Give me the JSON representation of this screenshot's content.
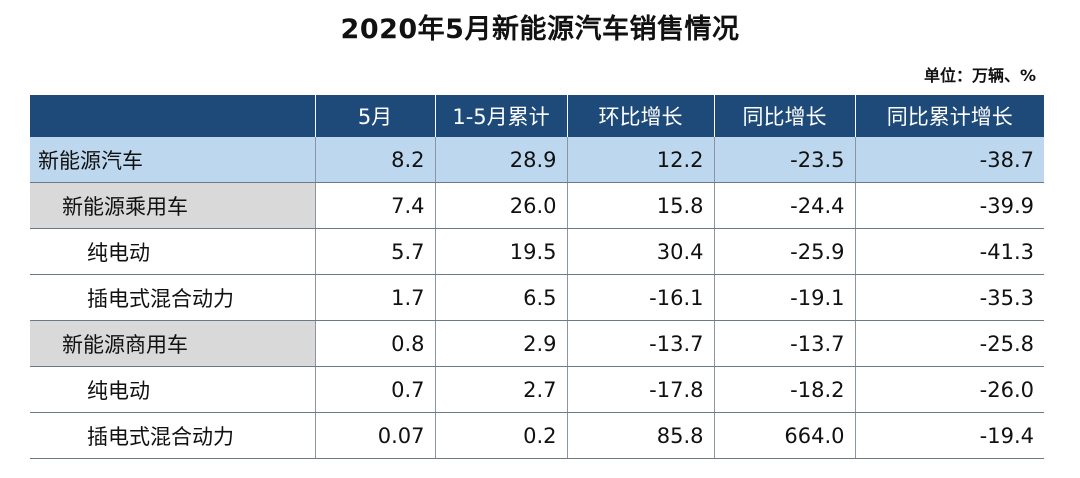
{
  "title": "2020年5月新能源汽车销售情况",
  "unit": "单位：万辆、%",
  "table": {
    "headers": [
      "",
      "5月",
      "1-5月累计",
      "环比增长",
      "同比增长",
      "同比累计增长"
    ],
    "rows": [
      {
        "name": "新能源汽车",
        "level": 0,
        "values": [
          "8.2",
          "28.9",
          "12.2",
          "-23.5",
          "-38.7"
        ]
      },
      {
        "name": "新能源乘用车",
        "level": 1,
        "values": [
          "7.4",
          "26.0",
          "15.8",
          "-24.4",
          "-39.9"
        ]
      },
      {
        "name": "纯电动",
        "level": 2,
        "values": [
          "5.7",
          "19.5",
          "30.4",
          "-25.9",
          "-41.3"
        ]
      },
      {
        "name": "插电式混合动力",
        "level": 2,
        "values": [
          "1.7",
          "6.5",
          "-16.1",
          "-19.1",
          "-35.3"
        ]
      },
      {
        "name": "新能源商用车",
        "level": 1,
        "values": [
          "0.8",
          "2.9",
          "-13.7",
          "-13.7",
          "-25.8"
        ]
      },
      {
        "name": "纯电动",
        "level": 2,
        "values": [
          "0.7",
          "2.7",
          "-17.8",
          "-18.2",
          "-26.0"
        ]
      },
      {
        "name": "插电式混合动力",
        "level": 2,
        "values": [
          "0.07",
          "0.2",
          "85.8",
          "664.0",
          "-19.4"
        ]
      }
    ]
  }
}
